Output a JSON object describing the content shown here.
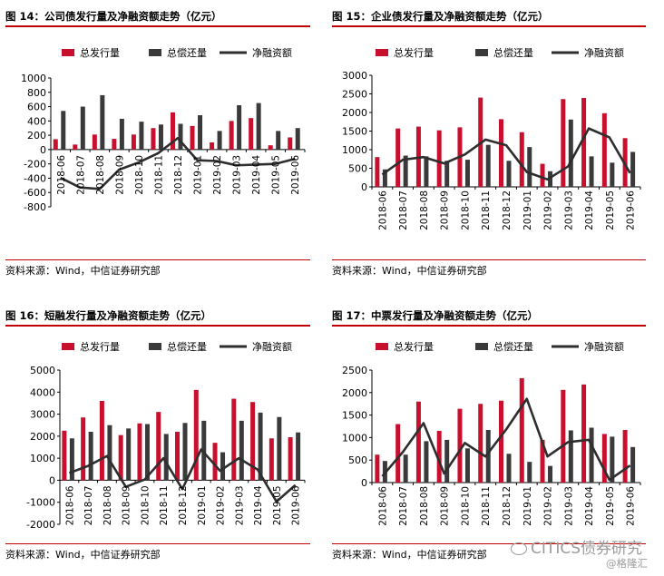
{
  "watermark": {
    "brand": "CITICS债券研究",
    "handle": "@格隆汇"
  },
  "colors": {
    "issuance": "#c8102e",
    "repayment": "#3a3a3a",
    "net": "#2e2e2e",
    "rule": "#c00000"
  },
  "panels": [
    {
      "title": "图 14：公司债发行量及净融资额走势（亿元）",
      "source": "资料来源：Wind，中信证券研究部",
      "legend_position": "top",
      "chart_data": {
        "type": "bar",
        "categories": [
          "2018-06",
          "2018-07",
          "2018-08",
          "2018-09",
          "2018-10",
          "2018-11",
          "2018-12",
          "2019-01",
          "2019-02",
          "2019-03",
          "2019-04",
          "2019-05",
          "2019-06"
        ],
        "series": [
          {
            "name": "总发行量",
            "kind": "bar",
            "values": [
              145,
              70,
              210,
              150,
              210,
              300,
              520,
              330,
              100,
              400,
              440,
              60,
              170
            ]
          },
          {
            "name": "总偿还量",
            "kind": "bar",
            "values": [
              540,
              600,
              760,
              430,
              390,
              350,
              360,
              480,
              260,
              620,
              650,
              260,
              300
            ]
          },
          {
            "name": "净融资额",
            "kind": "line",
            "values": [
              -395,
              -530,
              -550,
              -280,
              -180,
              -50,
              160,
              -150,
              -160,
              -220,
              -210,
              -200,
              -130
            ]
          }
        ],
        "ylim": [
          -800,
          1000
        ],
        "yticks": [
          -800,
          -600,
          -400,
          -200,
          0,
          200,
          400,
          600,
          800,
          1000
        ],
        "xlabel": "",
        "ylabel": ""
      }
    },
    {
      "title": "图 15：企业债发行量及净融资额走势（亿元）",
      "source": "资料来源：Wind，中信证券研究部",
      "legend_position": "top",
      "chart_data": {
        "type": "bar",
        "categories": [
          "2018-06",
          "2018-07",
          "2018-08",
          "2018-09",
          "2018-10",
          "2018-11",
          "2018-12",
          "2019-01",
          "2019-02",
          "2019-03",
          "2019-04",
          "2019-05",
          "2019-06"
        ],
        "series": [
          {
            "name": "总发行量",
            "kind": "bar",
            "values": [
              800,
              1570,
              1620,
              1520,
              1600,
              2400,
              1820,
              1470,
              620,
              2360,
              2390,
              1980,
              1310
            ]
          },
          {
            "name": "总偿还量",
            "kind": "bar",
            "values": [
              470,
              840,
              820,
              700,
              730,
              1130,
              700,
              1070,
              420,
              1810,
              820,
              650,
              940
            ]
          },
          {
            "name": "净融资额",
            "kind": "line",
            "values": [
              330,
              730,
              800,
              630,
              870,
              1270,
              1120,
              400,
              200,
              550,
              1570,
              1330,
              370
            ]
          }
        ],
        "ylim": [
          0,
          3000
        ],
        "yticks": [
          0,
          500,
          1000,
          1500,
          2000,
          2500,
          3000
        ],
        "xlabel": "",
        "ylabel": ""
      }
    },
    {
      "title": "图 16：短融发行量及净融资额走势（亿元）",
      "source": "资料来源：Wind，中信证券研究部",
      "legend_position": "top",
      "chart_data": {
        "type": "bar",
        "categories": [
          "2018-06",
          "2018-07",
          "2018-08",
          "2018-09",
          "2018-10",
          "2018-11",
          "2018-12",
          "2019-01",
          "2019-02",
          "2019-03",
          "2019-04",
          "2019-05",
          "2019-06"
        ],
        "series": [
          {
            "name": "总发行量",
            "kind": "bar",
            "values": [
              2250,
              2850,
              3600,
              2050,
              2580,
              3100,
              2200,
              4100,
              1700,
              3700,
              3550,
              1900,
              1950
            ]
          },
          {
            "name": "总偿还量",
            "kind": "bar",
            "values": [
              1900,
              2200,
              2500,
              2350,
              2550,
              2100,
              2600,
              2700,
              1270,
              2700,
              3070,
              2870,
              2170
            ]
          },
          {
            "name": "净融资额",
            "kind": "line",
            "values": [
              330,
              650,
              1100,
              -300,
              30,
              1000,
              -400,
              1400,
              430,
              1000,
              480,
              -970,
              -220
            ]
          }
        ],
        "ylim": [
          -2000,
          5000
        ],
        "yticks": [
          -2000,
          -1000,
          0,
          1000,
          2000,
          3000,
          4000,
          5000
        ],
        "xlabel": "",
        "ylabel": ""
      }
    },
    {
      "title": "图 17：中票发行量及净融资额走势（亿元）",
      "source": "资料来源：Wind，中信证券研究部",
      "legend_position": "top",
      "chart_data": {
        "type": "bar",
        "categories": [
          "2018-06",
          "2018-07",
          "2018-08",
          "2018-09",
          "2018-10",
          "2018-11",
          "2018-12",
          "2019-01",
          "2019-02",
          "2019-03",
          "2019-04",
          "2019-05",
          "2019-06"
        ],
        "series": [
          {
            "name": "总发行量",
            "kind": "bar",
            "values": [
              620,
              1300,
              1800,
              1150,
              1640,
              1750,
              1820,
              2320,
              950,
              2060,
              2180,
              1080,
              1170
            ]
          },
          {
            "name": "总偿还量",
            "kind": "bar",
            "values": [
              480,
              620,
              920,
              950,
              760,
              1170,
              640,
              460,
              370,
              1160,
              1220,
              1020,
              790
            ]
          },
          {
            "name": "净融资额",
            "kind": "line",
            "values": [
              140,
              680,
              1320,
              200,
              880,
              580,
              1180,
              1860,
              580,
              900,
              950,
              60,
              380
            ]
          }
        ],
        "ylim": [
          0,
          2500
        ],
        "yticks": [
          0,
          500,
          1000,
          1500,
          2000,
          2500
        ],
        "xlabel": "",
        "ylabel": ""
      }
    }
  ]
}
